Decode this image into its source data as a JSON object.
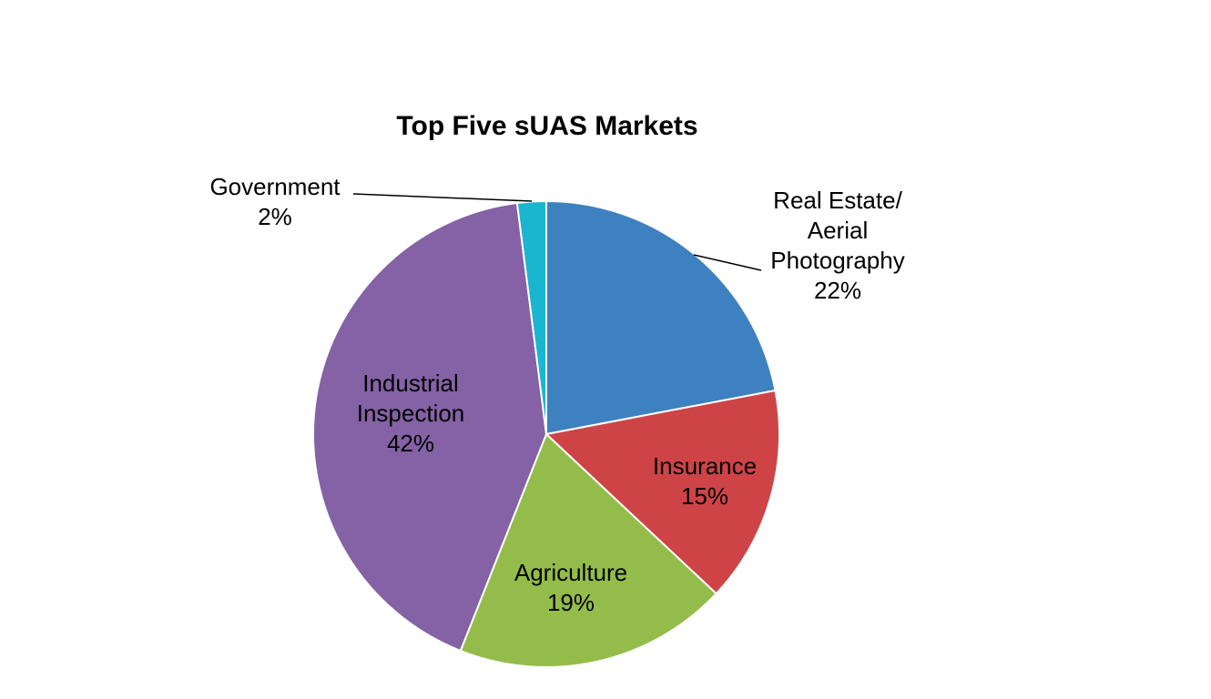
{
  "chart_data": {
    "type": "pie",
    "title": "Top Five sUAS Markets",
    "start_angle_deg": 0,
    "direction": "clockwise",
    "slices": [
      {
        "name": "Real Estate/ Aerial Photography",
        "label_lines": [
          "Real Estate/",
          "Aerial",
          "Photography",
          "22%"
        ],
        "value": 22,
        "color": "#3E81C1",
        "label_placement": "outside"
      },
      {
        "name": "Insurance",
        "label_lines": [
          "Insurance",
          "15%"
        ],
        "value": 15,
        "color": "#CE4446",
        "label_placement": "inside"
      },
      {
        "name": "Agriculture",
        "label_lines": [
          "Agriculture",
          "19%"
        ],
        "value": 19,
        "color": "#94BC4B",
        "label_placement": "inside"
      },
      {
        "name": "Industrial Inspection",
        "label_lines": [
          "Industrial",
          "Inspection",
          "42%"
        ],
        "value": 42,
        "color": "#8462A5",
        "label_placement": "inside"
      },
      {
        "name": "Government",
        "label_lines": [
          "Government",
          "2%"
        ],
        "value": 2,
        "color": "#1AB5CF",
        "label_placement": "outside"
      }
    ]
  }
}
